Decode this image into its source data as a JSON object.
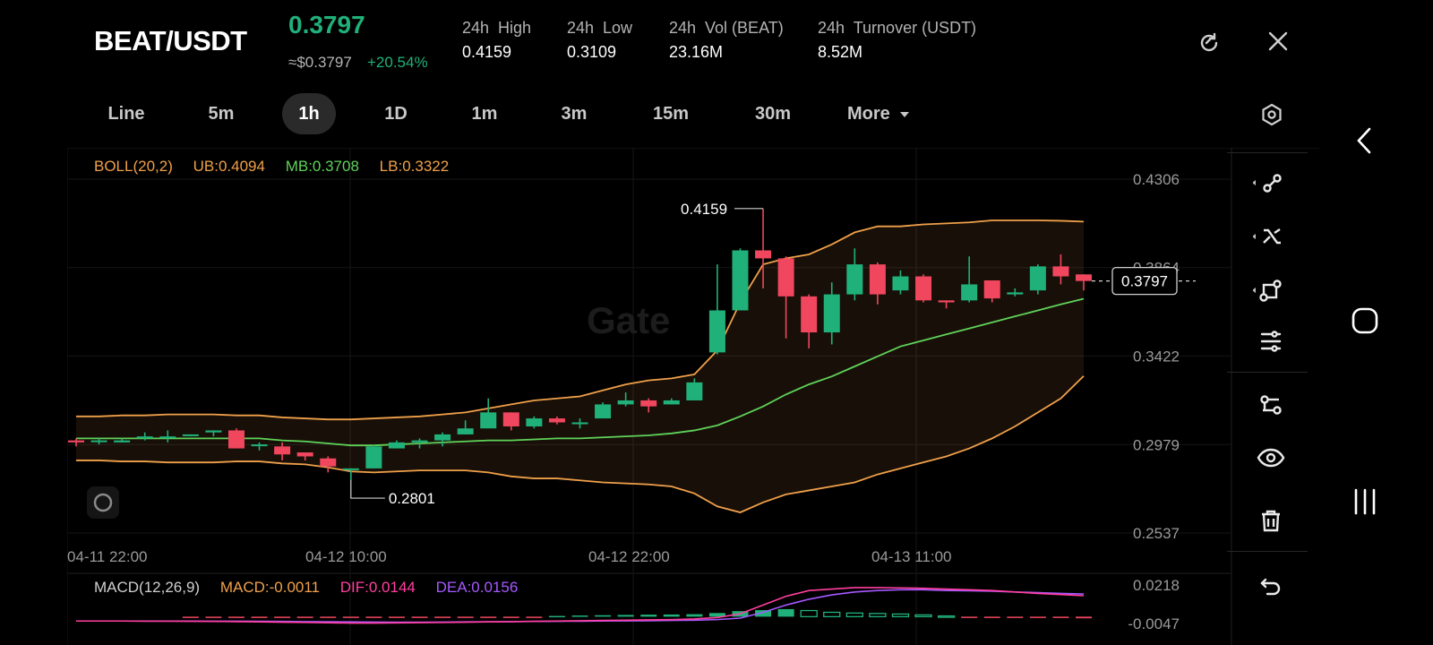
{
  "header": {
    "pair": "BEAT/USDT",
    "price": "0.3797",
    "usd_price": "≈$0.3797",
    "change": "+20.54%",
    "stats": [
      {
        "label": "24h  High",
        "value": "0.4159"
      },
      {
        "label": "24h  Low",
        "value": "0.3109"
      },
      {
        "label": "24h  Vol (BEAT)",
        "value": "23.16M"
      },
      {
        "label": "24h  Turnover (USDT)",
        "value": "8.52M"
      }
    ],
    "refresh_icon": "refresh-icon",
    "close_icon": "close-icon"
  },
  "tabs": {
    "items": [
      "Line",
      "5m",
      "1h",
      "1D",
      "1m",
      "3m",
      "15m",
      "30m",
      "More"
    ],
    "active": "1h",
    "settings_icon": "hexagon-settings-icon"
  },
  "indicators": {
    "boll": {
      "name": "BOLL(20,2)",
      "ub": "UB:0.4094",
      "mb": "MB:0.3708",
      "lb": "LB:0.3322"
    },
    "macd": {
      "name": "MACD(12,26,9)",
      "macd": "MACD:-0.0011",
      "dif": "DIF:0.0144",
      "dea": "DEA:0.0156"
    }
  },
  "chart": {
    "watermark": "Gate",
    "max_label": "0.4159",
    "min_label": "0.2801",
    "current_label": "0.3797",
    "y_ticks": [
      "0.4306",
      "0.3864",
      "0.3422",
      "0.2979",
      "0.2537"
    ],
    "x_ticks": [
      "04-11 22:00",
      "04-12 10:00",
      "04-12 22:00",
      "04-13 11:00"
    ],
    "macd_ticks": [
      "0.0218",
      "-0.0047"
    ]
  },
  "colors": {
    "up": "#20b17a",
    "down": "#f0465e",
    "boll_band": "#f0a04a",
    "boll_mid": "#5fd35a",
    "dif": "#ff3f9e",
    "dea": "#a558ff",
    "macd_label": "#f0a04a"
  },
  "toolbar": [
    "trendline-icon",
    "cross-line-icon",
    "shape-icon",
    "sliders-icon",
    "indicator-icon",
    "eye-icon",
    "trash-icon",
    "undo-icon"
  ],
  "chart_data": {
    "type": "candlestick",
    "interval": "1h",
    "y_range": [
      0.2537,
      0.4306
    ],
    "candles": [
      [
        0.3,
        0.299,
        0.301,
        0.297
      ],
      [
        0.3,
        0.3,
        0.301,
        0.298
      ],
      [
        0.299,
        0.3,
        0.301,
        0.299
      ],
      [
        0.301,
        0.302,
        0.304,
        0.3
      ],
      [
        0.302,
        0.302,
        0.305,
        0.299
      ],
      [
        0.303,
        0.303,
        0.303,
        0.302
      ],
      [
        0.304,
        0.305,
        0.305,
        0.302
      ],
      [
        0.305,
        0.296,
        0.306,
        0.296
      ],
      [
        0.298,
        0.298,
        0.299,
        0.295
      ],
      [
        0.297,
        0.293,
        0.299,
        0.29
      ],
      [
        0.294,
        0.292,
        0.294,
        0.29
      ],
      [
        0.291,
        0.287,
        0.292,
        0.284
      ],
      [
        0.286,
        0.286,
        0.286,
        0.2801
      ],
      [
        0.286,
        0.297,
        0.298,
        0.286
      ],
      [
        0.296,
        0.299,
        0.3,
        0.296
      ],
      [
        0.299,
        0.3,
        0.301,
        0.296
      ],
      [
        0.3,
        0.303,
        0.304,
        0.297
      ],
      [
        0.303,
        0.306,
        0.31,
        0.303
      ],
      [
        0.306,
        0.314,
        0.321,
        0.306
      ],
      [
        0.314,
        0.307,
        0.314,
        0.305
      ],
      [
        0.307,
        0.311,
        0.312,
        0.306
      ],
      [
        0.311,
        0.309,
        0.312,
        0.308
      ],
      [
        0.309,
        0.309,
        0.311,
        0.306
      ],
      [
        0.311,
        0.318,
        0.319,
        0.311
      ],
      [
        0.318,
        0.32,
        0.324,
        0.317
      ],
      [
        0.32,
        0.317,
        0.321,
        0.314
      ],
      [
        0.318,
        0.32,
        0.321,
        0.318
      ],
      [
        0.32,
        0.329,
        0.331,
        0.32
      ],
      [
        0.344,
        0.365,
        0.388,
        0.343
      ],
      [
        0.365,
        0.395,
        0.396,
        0.365
      ],
      [
        0.395,
        0.391,
        0.4159,
        0.376
      ],
      [
        0.391,
        0.372,
        0.392,
        0.351
      ],
      [
        0.372,
        0.354,
        0.373,
        0.346
      ],
      [
        0.354,
        0.373,
        0.379,
        0.348
      ],
      [
        0.373,
        0.388,
        0.396,
        0.37
      ],
      [
        0.388,
        0.373,
        0.389,
        0.368
      ],
      [
        0.375,
        0.382,
        0.385,
        0.373
      ],
      [
        0.382,
        0.37,
        0.383,
        0.369
      ],
      [
        0.37,
        0.369,
        0.37,
        0.366
      ],
      [
        0.37,
        0.378,
        0.392,
        0.369
      ],
      [
        0.38,
        0.371,
        0.38,
        0.369
      ],
      [
        0.373,
        0.374,
        0.376,
        0.372
      ],
      [
        0.375,
        0.387,
        0.388,
        0.373
      ],
      [
        0.387,
        0.382,
        0.393,
        0.378
      ],
      [
        0.383,
        0.3797,
        0.383,
        0.375
      ]
    ],
    "boll_mid": [
      0.301,
      0.301,
      0.301,
      0.301,
      0.301,
      0.301,
      0.301,
      0.301,
      0.301,
      0.3,
      0.2995,
      0.2985,
      0.2975,
      0.2975,
      0.298,
      0.2985,
      0.299,
      0.2995,
      0.3,
      0.3,
      0.3005,
      0.301,
      0.301,
      0.3015,
      0.302,
      0.3025,
      0.3035,
      0.305,
      0.3075,
      0.312,
      0.317,
      0.323,
      0.328,
      0.332,
      0.337,
      0.342,
      0.347,
      0.35,
      0.353,
      0.356,
      0.359,
      0.362,
      0.365,
      0.368,
      0.3708
    ],
    "boll_ub": [
      0.312,
      0.312,
      0.3125,
      0.3125,
      0.313,
      0.313,
      0.313,
      0.3125,
      0.3125,
      0.3115,
      0.311,
      0.3105,
      0.3105,
      0.311,
      0.3115,
      0.312,
      0.313,
      0.314,
      0.316,
      0.318,
      0.32,
      0.321,
      0.322,
      0.325,
      0.328,
      0.33,
      0.331,
      0.333,
      0.345,
      0.369,
      0.388,
      0.391,
      0.393,
      0.398,
      0.404,
      0.407,
      0.407,
      0.408,
      0.4085,
      0.409,
      0.41,
      0.41,
      0.41,
      0.4098,
      0.4094
    ],
    "boll_lb": [
      0.29,
      0.29,
      0.2895,
      0.2895,
      0.289,
      0.289,
      0.289,
      0.2895,
      0.2895,
      0.2885,
      0.288,
      0.2865,
      0.2845,
      0.284,
      0.2845,
      0.285,
      0.285,
      0.285,
      0.284,
      0.282,
      0.281,
      0.281,
      0.28,
      0.279,
      0.2785,
      0.278,
      0.277,
      0.2735,
      0.267,
      0.264,
      0.269,
      0.273,
      0.275,
      0.277,
      0.279,
      0.283,
      0.286,
      0.289,
      0.292,
      0.296,
      0.301,
      0.307,
      0.314,
      0.321,
      0.3322
    ],
    "macd_hist": [
      0,
      0,
      0,
      0,
      0,
      -0.0003,
      -0.0004,
      -0.0004,
      -0.0005,
      -0.0006,
      -0.0007,
      -0.0008,
      -0.0009,
      -0.0009,
      -0.0008,
      -0.0007,
      -0.0006,
      -0.0005,
      -0.0004,
      -0.0003,
      -0.0002,
      0.0005,
      0.0008,
      0.001,
      0.0012,
      0.0014,
      0.0015,
      0.0017,
      0.0025,
      0.0038,
      0.0045,
      0.0052,
      0.0042,
      0.003,
      0.0025,
      0.0022,
      0.0018,
      0.0012,
      0.0005,
      -0.0002,
      -0.0003,
      -0.0004,
      -0.0005,
      -0.0008,
      -0.0011
    ],
    "macd_dif": [
      -0.003,
      -0.003,
      -0.003,
      -0.0031,
      -0.0031,
      -0.0032,
      -0.0033,
      -0.0034,
      -0.0036,
      -0.0038,
      -0.004,
      -0.0042,
      -0.0044,
      -0.0044,
      -0.0043,
      -0.0041,
      -0.004,
      -0.0038,
      -0.0036,
      -0.0034,
      -0.0032,
      -0.003,
      -0.0028,
      -0.0026,
      -0.0024,
      -0.0022,
      -0.002,
      -0.0016,
      -0.0006,
      0.002,
      0.008,
      0.014,
      0.018,
      0.019,
      0.02,
      0.02,
      0.0198,
      0.0195,
      0.019,
      0.0185,
      0.018,
      0.017,
      0.016,
      0.0152,
      0.0144
    ],
    "macd_dea": [
      -0.003,
      -0.003,
      -0.003,
      -0.003,
      -0.003,
      -0.003,
      -0.0031,
      -0.0031,
      -0.0032,
      -0.0033,
      -0.0034,
      -0.0035,
      -0.0036,
      -0.0037,
      -0.0038,
      -0.0038,
      -0.0037,
      -0.0036,
      -0.0035,
      -0.0034,
      -0.0033,
      -0.0032,
      -0.0031,
      -0.003,
      -0.0029,
      -0.0028,
      -0.0026,
      -0.0024,
      -0.002,
      -0.001,
      0.003,
      0.008,
      0.012,
      0.015,
      0.017,
      0.018,
      0.0185,
      0.0185,
      0.018,
      0.0178,
      0.0175,
      0.017,
      0.0165,
      0.016,
      0.0156
    ]
  }
}
